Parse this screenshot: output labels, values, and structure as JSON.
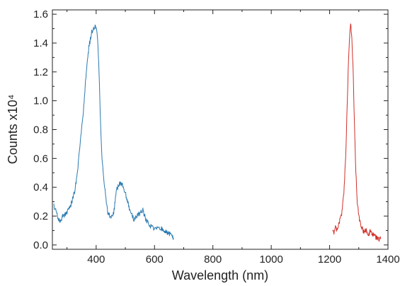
{
  "chart_data": {
    "type": "line",
    "title": "",
    "xlabel": "Wavelength (nm)",
    "ylabel": "Counts x10⁴",
    "xlim": [
      250,
      1400
    ],
    "ylim": [
      -0.03,
      1.63
    ],
    "x_ticks": [
      400,
      600,
      800,
      1000,
      1200,
      1400
    ],
    "x_tick_labels": [
      "400",
      "600",
      "800",
      "1000",
      "1200",
      "1400"
    ],
    "y_ticks": [
      0.0,
      0.2,
      0.4,
      0.6,
      0.8,
      1.0,
      1.2,
      1.4,
      1.6
    ],
    "y_tick_labels": [
      "0.0",
      "0.2",
      "0.4",
      "0.6",
      "0.8",
      "1.0",
      "1.2",
      "1.4",
      "1.6"
    ],
    "grid": false,
    "legend": "none",
    "series": [
      {
        "color": "#2a7ab0",
        "x": [
          255,
          265,
          275,
          285,
          295,
          305,
          315,
          325,
          335,
          345,
          355,
          365,
          375,
          385,
          395,
          400,
          405,
          410,
          415,
          420,
          430,
          440,
          450,
          460,
          470,
          480,
          490,
          500,
          510,
          520,
          530,
          540,
          550,
          560,
          570,
          580,
          590,
          600,
          610,
          620,
          630,
          640,
          650,
          660,
          665
        ],
        "y": [
          0.27,
          0.22,
          0.16,
          0.2,
          0.21,
          0.24,
          0.29,
          0.36,
          0.48,
          0.7,
          0.9,
          1.17,
          1.37,
          1.48,
          1.51,
          1.52,
          1.42,
          1.2,
          0.85,
          0.6,
          0.38,
          0.22,
          0.19,
          0.22,
          0.38,
          0.43,
          0.42,
          0.36,
          0.28,
          0.22,
          0.17,
          0.2,
          0.22,
          0.24,
          0.18,
          0.15,
          0.12,
          0.11,
          0.13,
          0.12,
          0.1,
          0.09,
          0.08,
          0.06,
          0.05
        ]
      },
      {
        "color": "#d0302a",
        "x": [
          1210,
          1215,
          1220,
          1225,
          1230,
          1235,
          1240,
          1245,
          1250,
          1255,
          1260,
          1265,
          1270,
          1272,
          1275,
          1280,
          1285,
          1290,
          1295,
          1300,
          1305,
          1310,
          1315,
          1320,
          1325,
          1330,
          1335,
          1340,
          1345,
          1350,
          1355,
          1360,
          1365,
          1370,
          1375
        ],
        "y": [
          0.1,
          0.08,
          0.12,
          0.1,
          0.14,
          0.17,
          0.2,
          0.28,
          0.4,
          0.62,
          0.95,
          1.3,
          1.49,
          1.52,
          1.48,
          1.25,
          0.85,
          0.5,
          0.3,
          0.2,
          0.15,
          0.12,
          0.1,
          0.09,
          0.1,
          0.08,
          0.07,
          0.1,
          0.08,
          0.07,
          0.06,
          0.05,
          0.05,
          0.04,
          0.04
        ]
      }
    ]
  }
}
